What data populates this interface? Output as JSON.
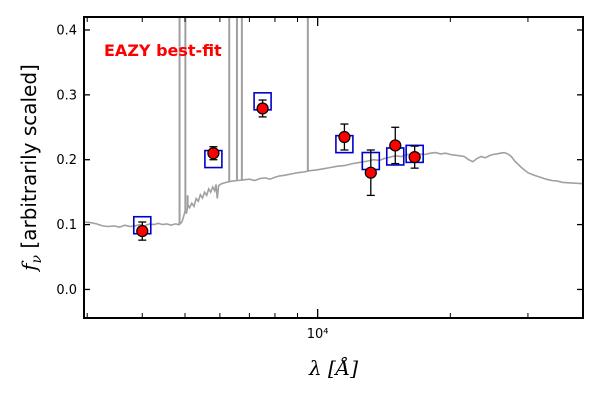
{
  "chart_data": {
    "type": "scatter",
    "title": "",
    "annotation": "EAZY best-fit",
    "annotation_color": "#ff0000",
    "xlabel": "λ [Å]",
    "ylabel": "f_ν [arbitrarily scaled]",
    "ylabel_symbol": "f",
    "ylabel_sub": "ν",
    "ylabel_rest": "[arbitrarily scaled]",
    "xlabel_symbol": "λ",
    "xlabel_rest": "[Å]",
    "x_scale": "log",
    "xlim": [
      2950,
      40000
    ],
    "ylim": [
      -0.044,
      0.42
    ],
    "xticks": [
      {
        "value": 10000,
        "label": "10⁴"
      }
    ],
    "yticks": [
      {
        "value": 0.0,
        "label": "0.0"
      },
      {
        "value": 0.1,
        "label": "0.1"
      },
      {
        "value": 0.2,
        "label": "0.2"
      },
      {
        "value": 0.3,
        "label": "0.3"
      },
      {
        "value": 0.4,
        "label": "0.4"
      }
    ],
    "grid": false,
    "model_color": "#a0a0a0",
    "observed_color": "#ff0000",
    "model_box_color": "#0000cc",
    "model": [
      [
        2950,
        0.104
      ],
      [
        3050,
        0.103
      ],
      [
        3150,
        0.101
      ],
      [
        3250,
        0.098
      ],
      [
        3350,
        0.097
      ],
      [
        3450,
        0.098
      ],
      [
        3550,
        0.096
      ],
      [
        3650,
        0.099
      ],
      [
        3750,
        0.097
      ],
      [
        3850,
        0.098
      ],
      [
        3950,
        0.1
      ],
      [
        4050,
        0.098
      ],
      [
        4150,
        0.101
      ],
      [
        4250,
        0.1
      ],
      [
        4350,
        0.102
      ],
      [
        4450,
        0.1
      ],
      [
        4550,
        0.101
      ],
      [
        4650,
        0.099
      ],
      [
        4750,
        0.101
      ],
      [
        4850,
        0.1
      ],
      [
        4920,
        0.104
      ],
      [
        4960,
        0.112
      ],
      [
        5000,
        0.12
      ],
      [
        5040,
        0.118
      ],
      [
        5080,
        0.13
      ],
      [
        5120,
        0.126
      ],
      [
        5180,
        0.133
      ],
      [
        5240,
        0.128
      ],
      [
        5300,
        0.14
      ],
      [
        5360,
        0.136
      ],
      [
        5420,
        0.146
      ],
      [
        5480,
        0.141
      ],
      [
        5540,
        0.15
      ],
      [
        5600,
        0.145
      ],
      [
        5660,
        0.155
      ],
      [
        5720,
        0.15
      ],
      [
        5780,
        0.158
      ],
      [
        5840,
        0.152
      ],
      [
        5880,
        0.162
      ],
      [
        5920,
        0.14
      ],
      [
        5960,
        0.16
      ],
      [
        6050,
        0.163
      ],
      [
        6200,
        0.165
      ],
      [
        6400,
        0.167
      ],
      [
        6600,
        0.168
      ],
      [
        6800,
        0.169
      ],
      [
        7000,
        0.17
      ],
      [
        7200,
        0.168
      ],
      [
        7400,
        0.171
      ],
      [
        7600,
        0.172
      ],
      [
        7800,
        0.17
      ],
      [
        8000,
        0.173
      ],
      [
        8200,
        0.175
      ],
      [
        8400,
        0.176
      ],
      [
        8700,
        0.178
      ],
      [
        9000,
        0.18
      ],
      [
        9300,
        0.181
      ],
      [
        9600,
        0.183
      ],
      [
        9900,
        0.184
      ],
      [
        10300,
        0.186
      ],
      [
        10700,
        0.188
      ],
      [
        11100,
        0.19
      ],
      [
        11500,
        0.191
      ],
      [
        12000,
        0.194
      ],
      [
        12500,
        0.196
      ],
      [
        13000,
        0.198
      ],
      [
        13400,
        0.2
      ],
      [
        13800,
        0.199
      ],
      [
        14200,
        0.202
      ],
      [
        14600,
        0.204
      ],
      [
        15000,
        0.206
      ],
      [
        15500,
        0.205
      ],
      [
        16000,
        0.208
      ],
      [
        16500,
        0.207
      ],
      [
        17000,
        0.209
      ],
      [
        17500,
        0.208
      ],
      [
        18000,
        0.21
      ],
      [
        18500,
        0.211
      ],
      [
        19000,
        0.209
      ],
      [
        19500,
        0.21
      ],
      [
        20000,
        0.208
      ],
      [
        20500,
        0.207
      ],
      [
        21000,
        0.206
      ],
      [
        21500,
        0.205
      ],
      [
        22000,
        0.2
      ],
      [
        22500,
        0.197
      ],
      [
        23000,
        0.202
      ],
      [
        23500,
        0.205
      ],
      [
        24000,
        0.203
      ],
      [
        24500,
        0.206
      ],
      [
        25000,
        0.208
      ],
      [
        25500,
        0.209
      ],
      [
        26000,
        0.21
      ],
      [
        26500,
        0.211
      ],
      [
        27000,
        0.209
      ],
      [
        27500,
        0.205
      ],
      [
        28000,
        0.198
      ],
      [
        29000,
        0.188
      ],
      [
        30000,
        0.18
      ],
      [
        31000,
        0.176
      ],
      [
        32000,
        0.173
      ],
      [
        33000,
        0.17
      ],
      [
        34000,
        0.168
      ],
      [
        35000,
        0.167
      ],
      [
        36000,
        0.165
      ],
      [
        38000,
        0.164
      ],
      [
        40000,
        0.163
      ]
    ],
    "emission_lines": [
      {
        "x": 4860,
        "y": 0.42
      },
      {
        "x": 5010,
        "y": 0.42
      },
      {
        "x": 5070,
        "y": 0.145
      },
      {
        "x": 6300,
        "y": 0.42
      },
      {
        "x": 6560,
        "y": 0.42
      },
      {
        "x": 6730,
        "y": 0.42
      },
      {
        "x": 9500,
        "y": 0.42
      }
    ],
    "model_photometry": [
      {
        "x": 4000,
        "y": 0.099
      },
      {
        "x": 5800,
        "y": 0.201
      },
      {
        "x": 7500,
        "y": 0.29
      },
      {
        "x": 11500,
        "y": 0.224
      },
      {
        "x": 13200,
        "y": 0.198
      },
      {
        "x": 15000,
        "y": 0.205
      },
      {
        "x": 16600,
        "y": 0.209
      }
    ],
    "observed": [
      {
        "x": 4000,
        "y": 0.09,
        "yerr": 0.014
      },
      {
        "x": 5800,
        "y": 0.21,
        "yerr": 0.01
      },
      {
        "x": 7500,
        "y": 0.279,
        "yerr": 0.013
      },
      {
        "x": 11500,
        "y": 0.235,
        "yerr": 0.02
      },
      {
        "x": 13200,
        "y": 0.18,
        "yerr": 0.035
      },
      {
        "x": 15000,
        "y": 0.222,
        "yerr": 0.028
      },
      {
        "x": 16600,
        "y": 0.204,
        "yerr": 0.017
      }
    ]
  }
}
